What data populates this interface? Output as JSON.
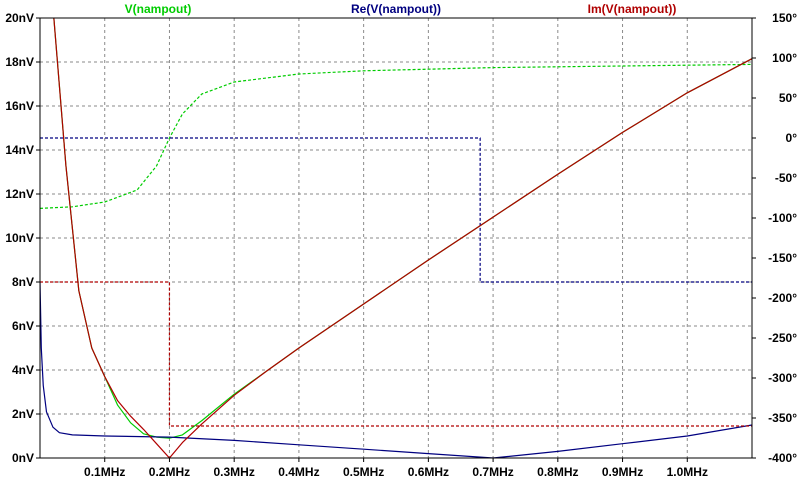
{
  "chart_data": {
    "type": "line",
    "legend": [
      {
        "label": "V(nampout)",
        "color": "#00cc00"
      },
      {
        "label": "Re(V(nampout))",
        "color": "#000080"
      },
      {
        "label": "Im(V(nampout))",
        "color": "#b00000"
      }
    ],
    "x_axis": {
      "unit": "MHz",
      "range": [
        0,
        1.1
      ],
      "ticks": [
        0.1,
        0.2,
        0.3,
        0.4,
        0.5,
        0.6,
        0.7,
        0.8,
        0.9,
        1.0
      ],
      "tick_labels": [
        "0.1MHz",
        "0.2MHz",
        "0.3MHz",
        "0.4MHz",
        "0.5MHz",
        "0.6MHz",
        "0.7MHz",
        "0.8MHz",
        "0.9MHz",
        "1.0MHz"
      ]
    },
    "y_axis_left": {
      "unit": "nV",
      "range": [
        0,
        20
      ],
      "ticks": [
        0,
        2,
        4,
        6,
        8,
        10,
        12,
        14,
        16,
        18,
        20
      ],
      "tick_labels": [
        "0nV",
        "2nV",
        "4nV",
        "6nV",
        "8nV",
        "10nV",
        "12nV",
        "14nV",
        "16nV",
        "18nV",
        "20nV"
      ]
    },
    "y_axis_right": {
      "unit": "degrees",
      "range": [
        -400,
        150
      ],
      "ticks": [
        -400,
        -350,
        -300,
        -250,
        -200,
        -150,
        -100,
        -50,
        0,
        50,
        100,
        150
      ],
      "tick_labels": [
        "-400°",
        "-350°",
        "-300°",
        "-250°",
        "-200°",
        "-150°",
        "-100°",
        "-50°",
        "0°",
        "50°",
        "100°",
        "150°"
      ]
    },
    "grid": true,
    "series": [
      {
        "name": "V(nampout)",
        "quantity": "magnitude",
        "axis": "left",
        "color": "#00cc00",
        "style": "solid",
        "points": [
          [
            0.02,
            20.5
          ],
          [
            0.04,
            13.3
          ],
          [
            0.06,
            7.6
          ],
          [
            0.08,
            5.0
          ],
          [
            0.1,
            3.7
          ],
          [
            0.12,
            2.4
          ],
          [
            0.14,
            1.6
          ],
          [
            0.16,
            1.1
          ],
          [
            0.18,
            0.95
          ],
          [
            0.2,
            0.9
          ],
          [
            0.22,
            1.05
          ],
          [
            0.25,
            1.7
          ],
          [
            0.3,
            2.9
          ],
          [
            0.35,
            3.95
          ],
          [
            0.4,
            5.0
          ],
          [
            0.5,
            7.0
          ],
          [
            0.6,
            9.0
          ],
          [
            0.7,
            10.95
          ],
          [
            0.8,
            12.9
          ],
          [
            0.9,
            14.8
          ],
          [
            1.0,
            16.6
          ],
          [
            1.1,
            18.15
          ]
        ]
      },
      {
        "name": "V(nampout)",
        "quantity": "phase",
        "axis": "right",
        "color": "#00cc00",
        "style": "dashed",
        "points": [
          [
            0,
            -88
          ],
          [
            0.05,
            -86
          ],
          [
            0.1,
            -80
          ],
          [
            0.15,
            -65
          ],
          [
            0.18,
            -35
          ],
          [
            0.2,
            0
          ],
          [
            0.22,
            30
          ],
          [
            0.25,
            55
          ],
          [
            0.3,
            70
          ],
          [
            0.4,
            80
          ],
          [
            0.5,
            84
          ],
          [
            0.6,
            86
          ],
          [
            0.7,
            88
          ],
          [
            0.8,
            89
          ],
          [
            0.9,
            90
          ],
          [
            1.0,
            91
          ],
          [
            1.1,
            92
          ]
        ]
      },
      {
        "name": "Re(V(nampout))",
        "quantity": "real",
        "axis": "left",
        "color": "#000080",
        "style": "solid",
        "points": [
          [
            0,
            8.0
          ],
          [
            0.002,
            5.0
          ],
          [
            0.005,
            3.3
          ],
          [
            0.01,
            2.1
          ],
          [
            0.02,
            1.4
          ],
          [
            0.03,
            1.15
          ],
          [
            0.05,
            1.05
          ],
          [
            0.1,
            1.0
          ],
          [
            0.2,
            0.95
          ],
          [
            0.3,
            0.8
          ],
          [
            0.4,
            0.6
          ],
          [
            0.5,
            0.4
          ],
          [
            0.6,
            0.2
          ],
          [
            0.7,
            0.0
          ],
          [
            0.8,
            0.3
          ],
          [
            0.9,
            0.65
          ],
          [
            1.0,
            1.0
          ],
          [
            1.1,
            1.5
          ]
        ]
      },
      {
        "name": "Re(V(nampout))",
        "quantity": "phase",
        "axis": "right",
        "color": "#000080",
        "style": "dashed",
        "points": [
          [
            0,
            0
          ],
          [
            0.68,
            0
          ],
          [
            0.68,
            -180
          ],
          [
            1.1,
            -180
          ]
        ]
      },
      {
        "name": "Im(V(nampout))",
        "quantity": "imaginary",
        "axis": "left",
        "color": "#b00000",
        "style": "solid",
        "points": [
          [
            0.02,
            20.5
          ],
          [
            0.04,
            13.3
          ],
          [
            0.06,
            7.6
          ],
          [
            0.08,
            5.0
          ],
          [
            0.1,
            3.7
          ],
          [
            0.12,
            2.6
          ],
          [
            0.14,
            1.9
          ],
          [
            0.16,
            1.3
          ],
          [
            0.18,
            0.65
          ],
          [
            0.2,
            0.0
          ],
          [
            0.22,
            0.7
          ],
          [
            0.25,
            1.55
          ],
          [
            0.3,
            2.85
          ],
          [
            0.35,
            3.95
          ],
          [
            0.4,
            5.0
          ],
          [
            0.5,
            7.0
          ],
          [
            0.6,
            9.0
          ],
          [
            0.7,
            10.95
          ],
          [
            0.8,
            12.9
          ],
          [
            0.9,
            14.8
          ],
          [
            1.0,
            16.6
          ],
          [
            1.1,
            18.15
          ]
        ]
      },
      {
        "name": "Im(V(nampout))",
        "quantity": "phase",
        "axis": "right",
        "color": "#b00000",
        "style": "dashed",
        "points": [
          [
            0,
            -180
          ],
          [
            0.2,
            -180
          ],
          [
            0.2,
            -360
          ],
          [
            1.1,
            -360
          ]
        ]
      }
    ]
  }
}
